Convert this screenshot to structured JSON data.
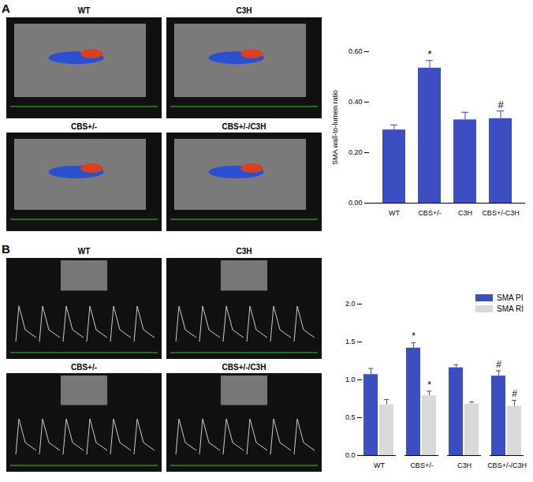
{
  "figure": {
    "panels": [
      {
        "label": "A",
        "image_titles": [
          "WT",
          "C3H",
          "CBS+/-",
          "CBS+/-/C3H"
        ]
      },
      {
        "label": "B",
        "image_titles": [
          "WT",
          "C3H",
          "CBS+/-",
          "CBS+/-/C3H"
        ]
      }
    ]
  },
  "chart_data": [
    {
      "type": "bar",
      "y_label": "SMA wall-to-lumen ratio",
      "categories": [
        "WT",
        "CBS+/-",
        "C3H",
        "CBS+/-C3H"
      ],
      "values": [
        0.29,
        0.535,
        0.33,
        0.335
      ],
      "errors": [
        0.02,
        0.03,
        0.03,
        0.03
      ],
      "annotations": [
        null,
        "*",
        null,
        "#"
      ],
      "color": "#3b4fc0",
      "ylim": [
        0,
        0.6
      ],
      "yticks": [
        0,
        0.2,
        0.4,
        0.6
      ]
    },
    {
      "type": "bar",
      "categories": [
        "WT",
        "CBS+/-",
        "C3H",
        "CBS+/-/C3H"
      ],
      "series": [
        {
          "name": "SMA PI",
          "color": "#3b4fc0",
          "values": [
            1.07,
            1.42,
            1.16,
            1.05
          ],
          "errors": [
            0.08,
            0.07,
            0.04,
            0.07
          ],
          "annotations": [
            null,
            "*",
            null,
            "#"
          ]
        },
        {
          "name": "SMA RI",
          "color": "#d9d9d9",
          "values": [
            0.67,
            0.79,
            0.68,
            0.65
          ],
          "errors": [
            0.07,
            0.06,
            0.03,
            0.08
          ],
          "annotations": [
            null,
            "*",
            null,
            "#"
          ]
        }
      ],
      "legend": "top-right",
      "ylim": [
        0,
        2
      ],
      "yticks": [
        0,
        0.5,
        1,
        1.5,
        2
      ]
    }
  ]
}
